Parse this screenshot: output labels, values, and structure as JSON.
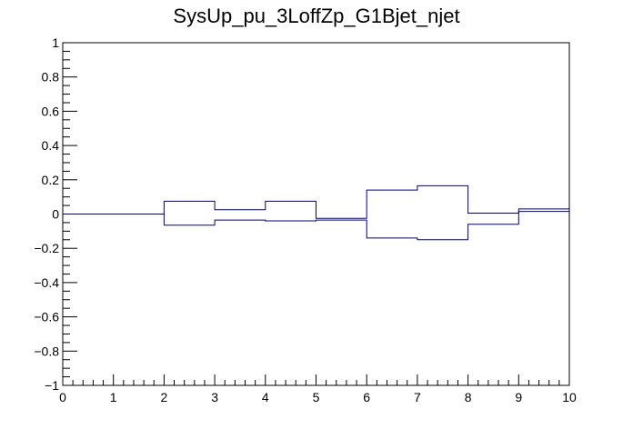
{
  "chart_data": {
    "type": "line",
    "title": "SysUp_pu_3LoffZp_G1Bjet_njet",
    "xlabel": "",
    "ylabel": "",
    "xlim": [
      0,
      10
    ],
    "ylim": [
      -1,
      1
    ],
    "x_ticks": [
      0,
      1,
      2,
      3,
      4,
      5,
      6,
      7,
      8,
      9,
      10
    ],
    "y_ticks": [
      -1,
      -0.8,
      -0.6,
      -0.4,
      -0.2,
      0,
      0.2,
      0.4,
      0.6,
      0.8,
      1
    ],
    "x_tick_labels": [
      "0",
      "1",
      "2",
      "3",
      "4",
      "5",
      "6",
      "7",
      "8",
      "9",
      "10"
    ],
    "y_tick_labels": [
      "−1",
      "−0.8",
      "−0.6",
      "−0.4",
      "−0.2",
      "0",
      "0.2",
      "0.4",
      "0.6",
      "0.8",
      "1"
    ],
    "grid": false,
    "line_color": "#000080",
    "series": [
      {
        "bin_edges": [
          0,
          1,
          2,
          3,
          4,
          5,
          6,
          7,
          8,
          9,
          10
        ],
        "values": [
          0,
          0,
          0.075,
          0.025,
          0.075,
          -0.025,
          0.14,
          0.165,
          0.005,
          0.03
        ]
      },
      {
        "bin_edges": [
          0,
          1,
          2,
          3,
          4,
          5,
          6,
          7,
          8,
          9,
          10
        ],
        "values": [
          0,
          0,
          -0.065,
          -0.035,
          -0.04,
          -0.035,
          -0.14,
          -0.15,
          -0.06,
          0.015
        ]
      }
    ]
  }
}
